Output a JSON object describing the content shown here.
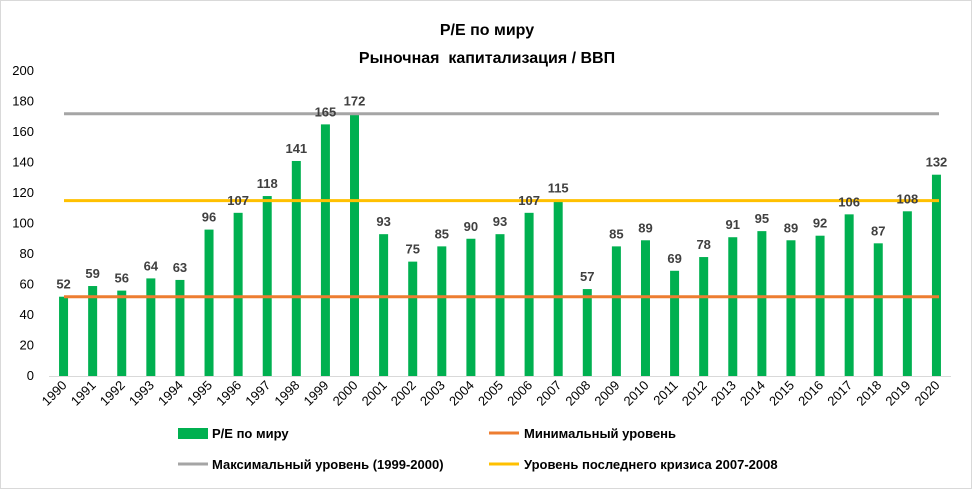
{
  "chart_data": {
    "type": "bar",
    "title": "P/E по миру",
    "subtitle": "Рыночная  капитализация / ВВП",
    "categories": [
      "1990",
      "1991",
      "1992",
      "1993",
      "1994",
      "1995",
      "1996",
      "1997",
      "1998",
      "1999",
      "2000",
      "2001",
      "2002",
      "2003",
      "2004",
      "2005",
      "2006",
      "2007",
      "2008",
      "2009",
      "2010",
      "2011",
      "2012",
      "2013",
      "2014",
      "2015",
      "2016",
      "2017",
      "2018",
      "2019",
      "2020"
    ],
    "series": [
      {
        "name": "P/E по миру",
        "color": "#00b050",
        "values": [
          52,
          59,
          56,
          64,
          63,
          96,
          107,
          118,
          141,
          165,
          172,
          93,
          75,
          85,
          90,
          93,
          107,
          115,
          57,
          85,
          89,
          69,
          78,
          91,
          95,
          89,
          92,
          106,
          87,
          108,
          132
        ]
      }
    ],
    "reference_lines": [
      {
        "name": "Минимальный уровень",
        "value": 52,
        "color": "#ed7d31"
      },
      {
        "name": "Максимальный уровень (1999-2000)",
        "value": 172,
        "color": "#a5a5a5"
      },
      {
        "name": "Уровень последнего кризиса 2007-2008",
        "value": 115,
        "color": "#ffc000"
      }
    ],
    "ylim": [
      0,
      200
    ],
    "yticks": [
      0,
      20,
      40,
      60,
      80,
      100,
      120,
      140,
      160,
      180,
      200
    ],
    "xlabel": "",
    "ylabel": "",
    "grid": false,
    "legend_position": "bottom"
  }
}
